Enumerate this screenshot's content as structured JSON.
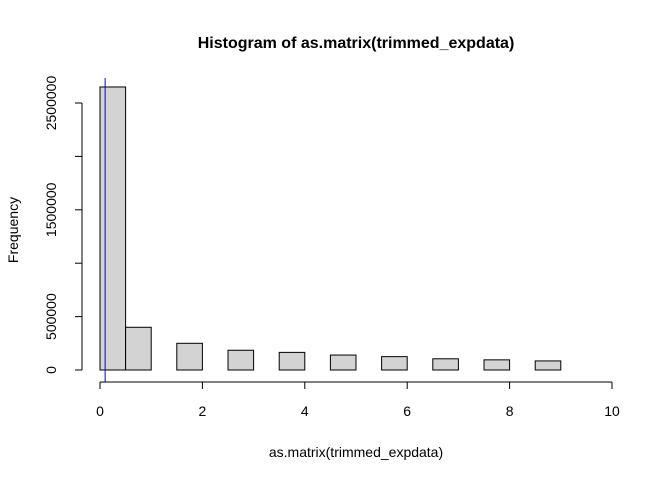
{
  "chart_data": {
    "type": "bar",
    "title": "Histogram of as.matrix(trimmed_expdata)",
    "xlabel": "as.matrix(trimmed_expdata)",
    "ylabel": "Frequency",
    "xlim": [
      0,
      10
    ],
    "ylim": [
      0,
      2750000
    ],
    "x_ticks": [
      "0",
      "2",
      "4",
      "6",
      "8",
      "10"
    ],
    "y_ticks": [
      "0",
      "500000",
      "1500000",
      "2500000"
    ],
    "bins": [
      {
        "start": 0.0,
        "end": 0.5,
        "count": 2650000
      },
      {
        "start": 0.5,
        "end": 1.0,
        "count": 400000
      },
      {
        "start": 1.0,
        "end": 1.5,
        "count": 0
      },
      {
        "start": 1.5,
        "end": 2.0,
        "count": 250000
      },
      {
        "start": 2.0,
        "end": 2.5,
        "count": 0
      },
      {
        "start": 2.5,
        "end": 3.0,
        "count": 185000
      },
      {
        "start": 3.0,
        "end": 3.5,
        "count": 0
      },
      {
        "start": 3.5,
        "end": 4.0,
        "count": 165000
      },
      {
        "start": 4.0,
        "end": 4.5,
        "count": 0
      },
      {
        "start": 4.5,
        "end": 5.0,
        "count": 140000
      },
      {
        "start": 5.0,
        "end": 5.5,
        "count": 0
      },
      {
        "start": 5.5,
        "end": 6.0,
        "count": 125000
      },
      {
        "start": 6.0,
        "end": 6.5,
        "count": 0
      },
      {
        "start": 6.5,
        "end": 7.0,
        "count": 105000
      },
      {
        "start": 7.0,
        "end": 7.5,
        "count": 0
      },
      {
        "start": 7.5,
        "end": 8.0,
        "count": 95000
      },
      {
        "start": 8.0,
        "end": 8.5,
        "count": 0
      },
      {
        "start": 8.5,
        "end": 9.0,
        "count": 85000
      }
    ],
    "vline": {
      "x": 0.1,
      "color": "#0000ff"
    },
    "bar_fill": "#d3d3d3",
    "bar_stroke": "#000000",
    "grid": false
  }
}
